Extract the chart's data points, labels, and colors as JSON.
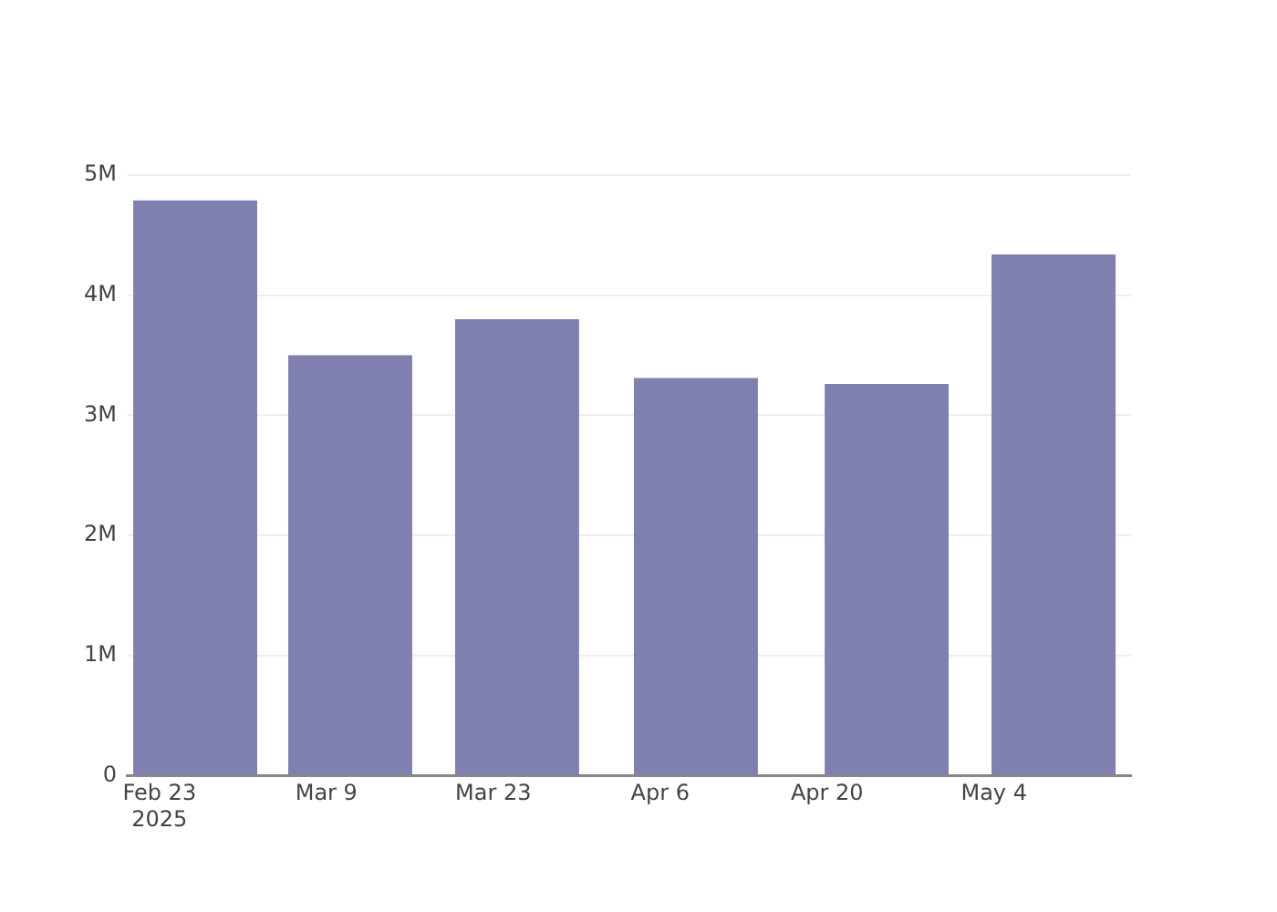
{
  "chart_data": {
    "type": "bar",
    "x": [
      "2025-02-26",
      "2025-03-11",
      "2025-03-25",
      "2025-04-09",
      "2025-04-25",
      "2025-05-09"
    ],
    "values": [
      4790000,
      3500000,
      3800000,
      3310000,
      3260000,
      4340000
    ],
    "color": "#7f7fb0",
    "xlim": [
      "2025-02-20T08:00",
      "2025-05-15T12:00"
    ],
    "xticks": [
      {
        "value": "2025-02-23",
        "label": "Feb 23\n2025"
      },
      {
        "value": "2025-03-09",
        "label": "Mar 9"
      },
      {
        "value": "2025-03-23",
        "label": "Mar 23"
      },
      {
        "value": "2025-04-06",
        "label": "Apr 6"
      },
      {
        "value": "2025-04-20",
        "label": "Apr 20"
      },
      {
        "value": "2025-05-04",
        "label": "May 4"
      }
    ],
    "ylim": [
      0,
      5000000
    ],
    "yticks": [
      0,
      {
        "value": 1000000,
        "label": "1M"
      },
      {
        "value": 2000000,
        "label": "2M"
      },
      {
        "value": 3000000,
        "label": "3M"
      },
      {
        "value": 4000000,
        "label": "4M"
      },
      {
        "value": 5000000,
        "label": "5M"
      }
    ],
    "grid": "y"
  }
}
